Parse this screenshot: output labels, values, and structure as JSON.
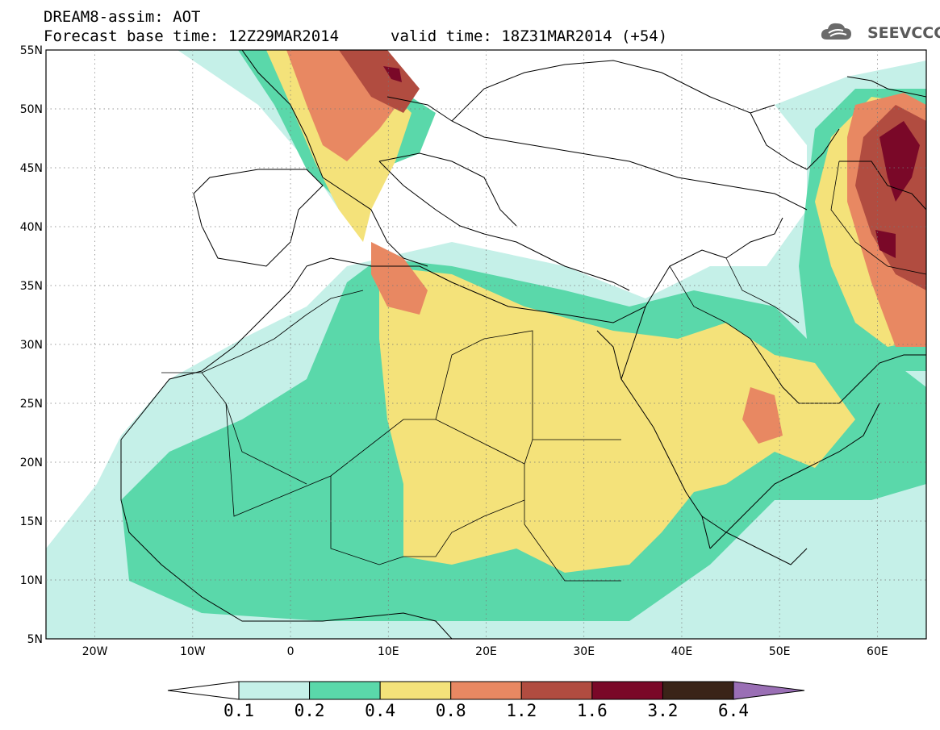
{
  "header": {
    "model_line": "DREAM8-assim: AOT",
    "base_line": "Forecast base time: 12Z29MAR2014",
    "valid_line": "valid time: 18Z31MAR2014 (+54)"
  },
  "logo": {
    "text": "SEEVCCC",
    "icon": "cloud-icon"
  },
  "map": {
    "lat_labels": [
      "55N",
      "50N",
      "45N",
      "40N",
      "35N",
      "30N",
      "25N",
      "20N",
      "15N",
      "10N",
      "5N"
    ],
    "lon_labels": [
      "20W",
      "10W",
      "0",
      "10E",
      "20E",
      "30E",
      "40E",
      "50E",
      "60E"
    ],
    "lat_range": [
      5,
      55
    ],
    "lon_range": [
      -25,
      65
    ]
  },
  "colorbar": {
    "labels": [
      "0.1",
      "0.2",
      "0.4",
      "0.8",
      "1.2",
      "1.6",
      "3.2",
      "6.4"
    ],
    "colors": [
      "#ffffff",
      "#c5f0e8",
      "#5ad8aa",
      "#f4e27a",
      "#e88862",
      "#b14c40",
      "#7a0828",
      "#3a2418",
      "#9a6fb5"
    ]
  }
}
